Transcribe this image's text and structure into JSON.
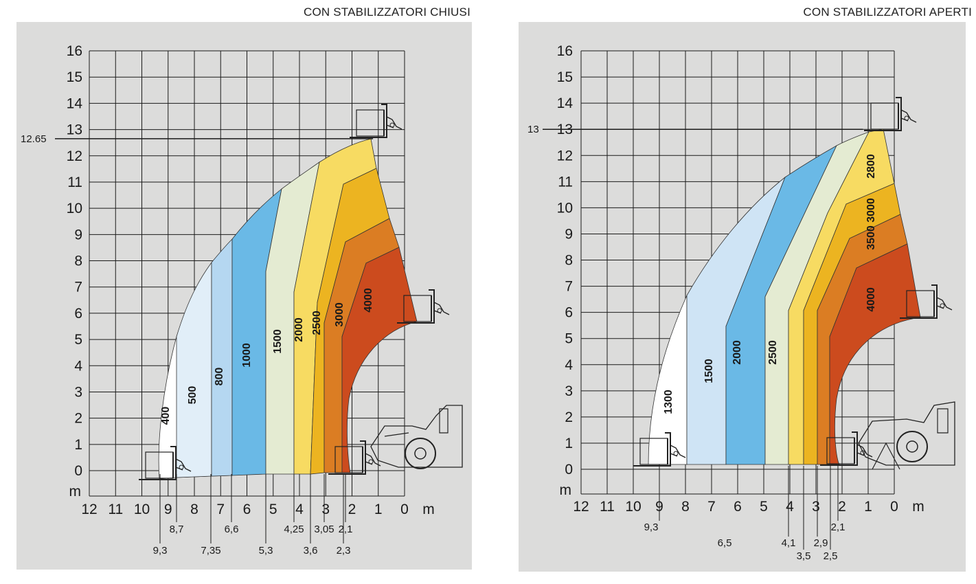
{
  "chart_data": [
    {
      "type": "area",
      "title": "CON STABILIZZATORI CHIUSI",
      "xlabel": "m",
      "ylabel": "m",
      "xlim": [
        12,
        0
      ],
      "ylim": [
        0,
        16
      ],
      "x_ticks": [
        "12",
        "11",
        "10",
        "9",
        "8",
        "7",
        "6",
        "5",
        "4",
        "3",
        "2",
        "1",
        "0"
      ],
      "y_ticks": [
        "16",
        "15",
        "14",
        "13",
        "12",
        "11",
        "10",
        "9",
        "8",
        "7",
        "6",
        "5",
        "4",
        "3",
        "2",
        "1",
        "0"
      ],
      "max_height_label": "12.65",
      "max_height": 12.65,
      "zones": [
        {
          "label": "400",
          "color": "#ffffff"
        },
        {
          "label": "500",
          "color": "#e1eef8"
        },
        {
          "label": "800",
          "color": "#b5d7f1"
        },
        {
          "label": "1000",
          "color": "#6ab9e6"
        },
        {
          "label": "1500",
          "color": "#e4ebd2"
        },
        {
          "label": "2000",
          "color": "#f7db62"
        },
        {
          "label": "2500",
          "color": "#ecb421"
        },
        {
          "label": "3000",
          "color": "#db7d23"
        },
        {
          "label": "4000",
          "color": "#cc4b1e"
        }
      ],
      "reach_labels": [
        {
          "text": "9,3",
          "x": 9.3
        },
        {
          "text": "8,7",
          "x": 8.7
        },
        {
          "text": "7,35",
          "x": 7.35
        },
        {
          "text": "6,6",
          "x": 6.6
        },
        {
          "text": "5,3",
          "x": 5.3
        },
        {
          "text": "4,25",
          "x": 4.25
        },
        {
          "text": "3,6",
          "x": 3.6
        },
        {
          "text": "3,05",
          "x": 3.05
        },
        {
          "text": "2,1",
          "x": 2.1
        },
        {
          "text": "2,3",
          "x": 2.3
        }
      ]
    },
    {
      "type": "area",
      "title": "CON STABILIZZATORI APERTI",
      "xlabel": "m",
      "ylabel": "m",
      "xlim": [
        12,
        0
      ],
      "ylim": [
        0,
        16
      ],
      "x_ticks": [
        "12",
        "11",
        "10",
        "9",
        "8",
        "7",
        "6",
        "5",
        "4",
        "3",
        "2",
        "1",
        "0"
      ],
      "y_ticks": [
        "16",
        "15",
        "14",
        "13",
        "12",
        "11",
        "10",
        "9",
        "8",
        "7",
        "6",
        "5",
        "4",
        "3",
        "2",
        "1",
        "0"
      ],
      "max_height_label": "13",
      "max_height": 13,
      "zones": [
        {
          "label": "1300",
          "color": "#ffffff"
        },
        {
          "label": "1500",
          "color": "#cfe4f5"
        },
        {
          "label": "2000",
          "color": "#6ab9e6"
        },
        {
          "label": "2500",
          "color": "#e4ebd2"
        },
        {
          "label": "2800",
          "color": "#f7db62"
        },
        {
          "label": "3000",
          "color": "#ecb421"
        },
        {
          "label": "3500",
          "color": "#db7d23"
        },
        {
          "label": "4000",
          "color": "#cc4b1e"
        }
      ],
      "reach_labels": [
        {
          "text": "9,3",
          "x": 9.3
        },
        {
          "text": "6,5",
          "x": 6.5
        },
        {
          "text": "4,1",
          "x": 4.1
        },
        {
          "text": "3,5",
          "x": 3.5
        },
        {
          "text": "2,9",
          "x": 2.9
        },
        {
          "text": "2,5",
          "x": 2.5
        },
        {
          "text": "2,1",
          "x": 2.1
        }
      ]
    }
  ],
  "colors": {
    "panel_bg": "#dcdcdb",
    "grid": "#1a1a1a"
  },
  "icons": [
    "forklift-fork-icon",
    "telehandler-vehicle-icon"
  ]
}
